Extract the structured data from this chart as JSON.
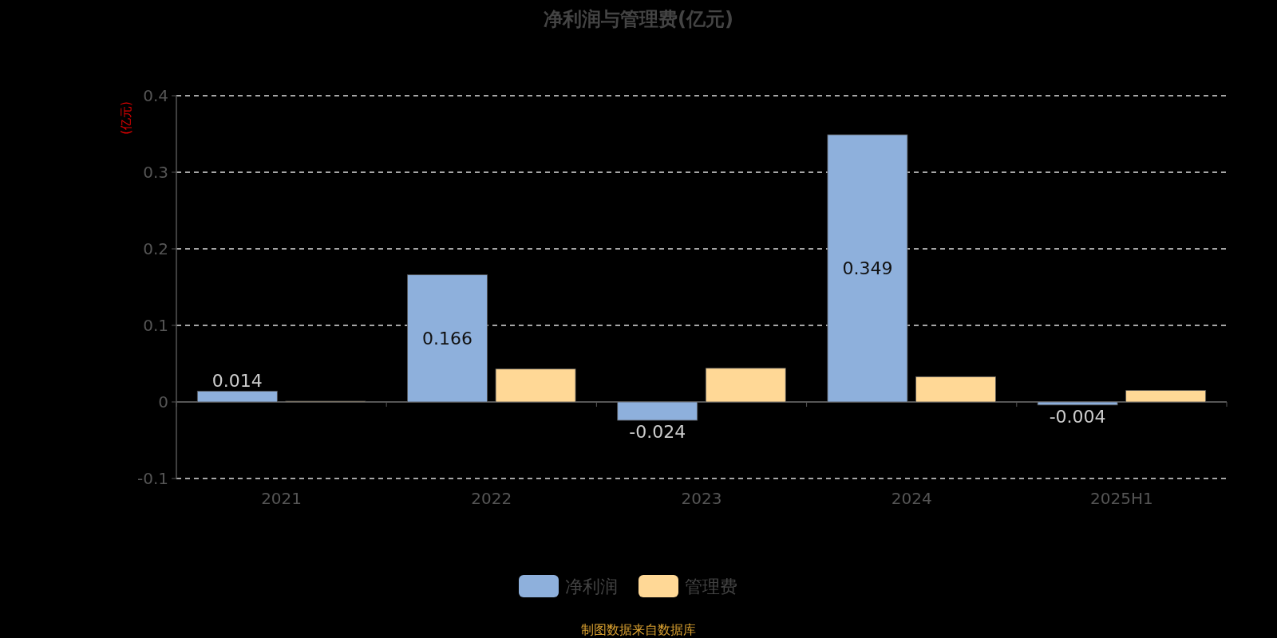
{
  "chart_data": {
    "type": "bar",
    "title": "净利润与管理费(亿元)",
    "ylabel": "(亿元)",
    "categories": [
      "2021",
      "2022",
      "2023",
      "2024",
      "2025H1"
    ],
    "series": [
      {
        "name": "净利润",
        "color": "#8eb0dc",
        "values": [
          0.014,
          0.166,
          -0.024,
          0.349,
          -0.004
        ],
        "value_labels": [
          "0.014",
          "0.166",
          "-0.024",
          "0.349",
          "-0.004"
        ]
      },
      {
        "name": "管理费",
        "color": "#ffd896",
        "values": [
          0.001,
          0.043,
          0.044,
          0.033,
          0.015
        ]
      }
    ],
    "ylim": [
      -0.1,
      0.4
    ],
    "yticks": [
      -0.1,
      0,
      0.1,
      0.2,
      0.3,
      0.4
    ],
    "grid": "y",
    "legend": "bottom",
    "annotations": [
      "制图数据来自数据库"
    ]
  }
}
